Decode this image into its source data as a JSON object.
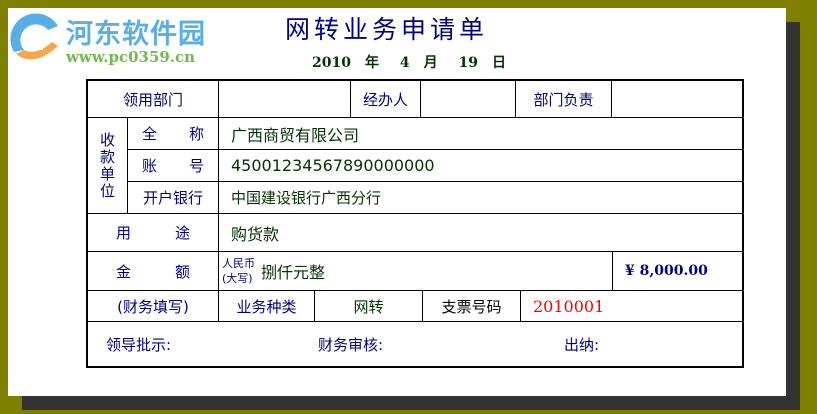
{
  "logo": {
    "name": "河东软件园",
    "url": "www.pc0359.cn",
    "colors": {
      "blue": "#5aaee6",
      "orange": "#f5a54a",
      "green": "#6dbb4a"
    }
  },
  "title": "网转业务申请单",
  "date": {
    "year": "2010",
    "year_unit": "年",
    "month": "4",
    "month_unit": "月",
    "day": "19",
    "day_unit": "日"
  },
  "form": {
    "dept_label": "领用部门",
    "dept_value": "",
    "handler_label": "经办人",
    "handler_value": "",
    "dept_head_label": "部门负责",
    "dept_head_value": "",
    "payee_label": "收款单位",
    "full_name_label": [
      "全",
      "称"
    ],
    "full_name_value": "广西商贸有限公司",
    "account_label": [
      "账",
      "号"
    ],
    "account_value": "4500123456789000000O",
    "bank_label": "开户银行",
    "bank_value": "中国建设银行广西分行",
    "purpose_label": [
      "用",
      "途"
    ],
    "purpose_value": "购货款",
    "amount_label": [
      "金",
      "额"
    ],
    "amount_currency_note": "人民币",
    "amount_capital_note": "(大写)",
    "amount_words": "捌仟元整",
    "amount_number": "¥ 8,000.00",
    "finance_fill": "(财务填写)",
    "business_type_label": "业务种类",
    "business_type_value": "网转",
    "cheque_no_label": "支票号码",
    "cheque_no_value": "2010001",
    "approval_label": "领导批示:",
    "finance_review_label": "财务审核:",
    "cashier_label": "出纳:"
  },
  "colors": {
    "background": "#808000",
    "label": "#000080",
    "value": "#003300",
    "cheque": "#ff0000"
  }
}
